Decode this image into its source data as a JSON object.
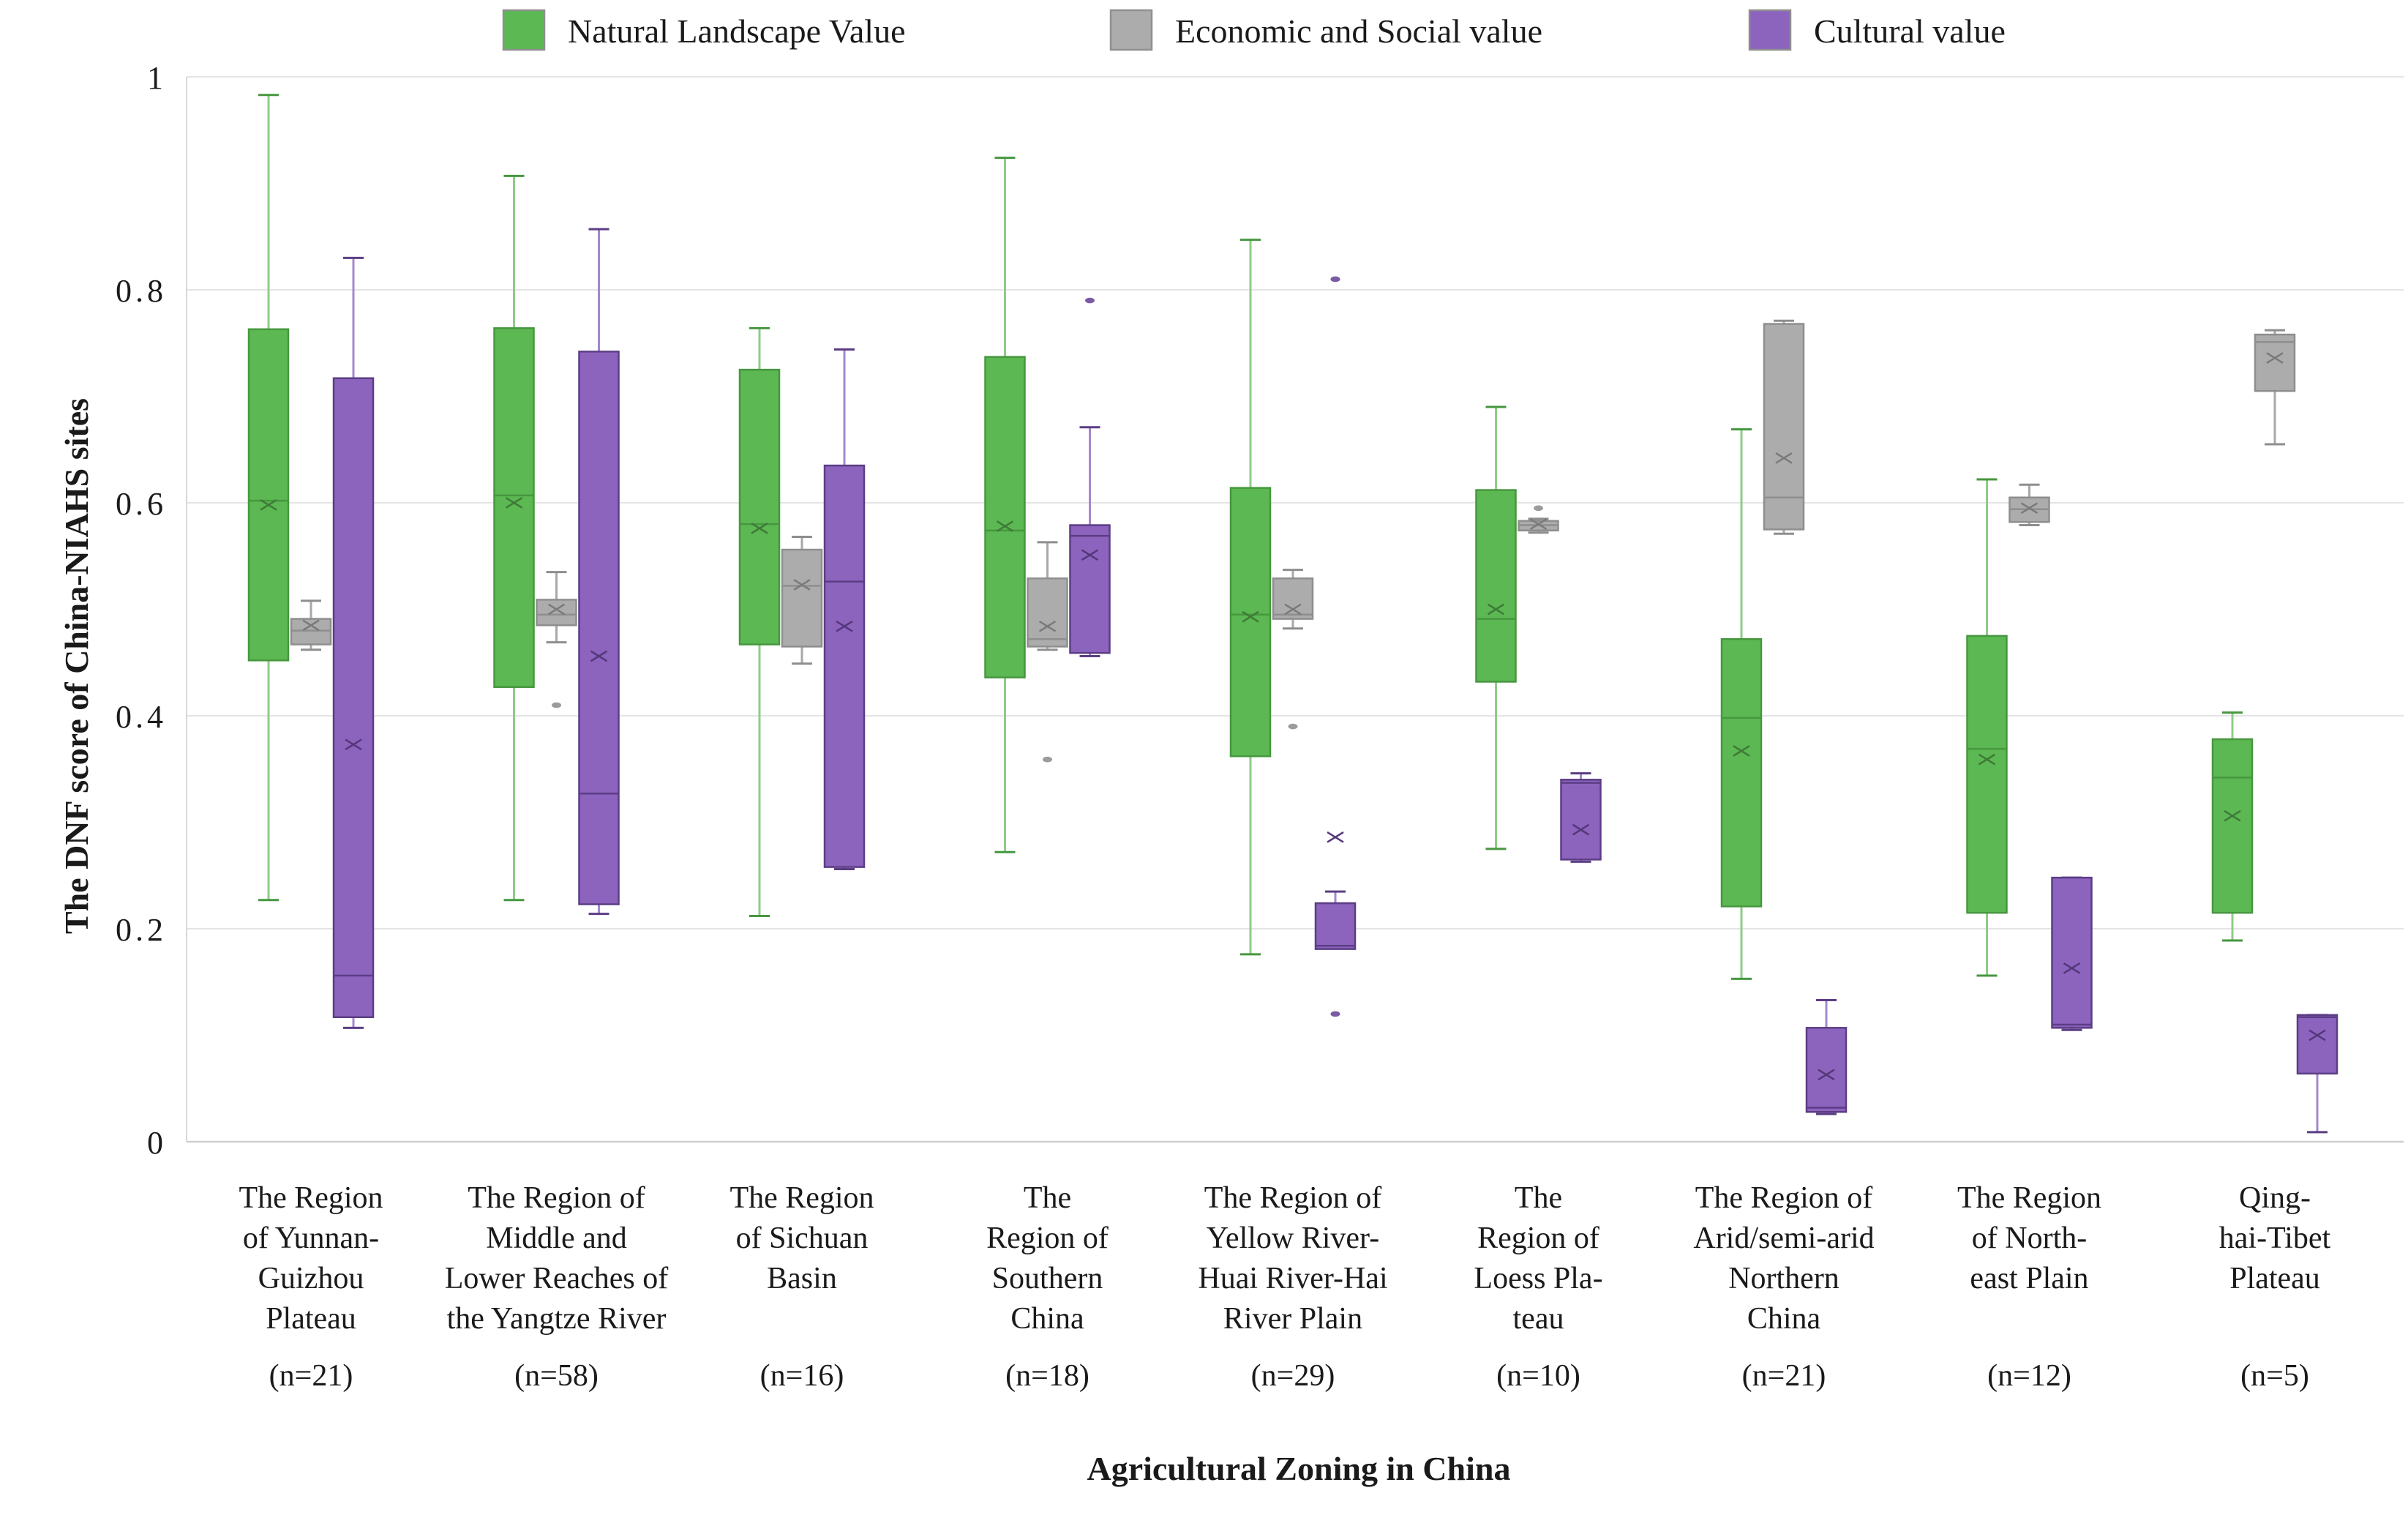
{
  "figure": {
    "y_axis_title": "The DNF score of China-NIAHS sites",
    "x_axis_title": "Agricultural Zoning in China"
  },
  "legend": [
    {
      "key": "natural",
      "label": "Natural Landscape Value",
      "swatch_color": "#5CB852"
    },
    {
      "key": "economic",
      "label": "Economic and Social value",
      "swatch_color": "#ACACAC"
    },
    {
      "key": "cultural",
      "label": "Cultural value",
      "swatch_color": "#8C64BE"
    }
  ],
  "chart_data": {
    "type": "boxplot",
    "title": "",
    "xlabel": "Agricultural Zoning in China",
    "ylabel": "The DNF score of China-NIAHS sites",
    "ylim": [
      0,
      1
    ],
    "y_ticks": [
      "1",
      "0.8",
      "0.6",
      "0.4",
      "0.2",
      "0"
    ],
    "grid": true,
    "legend_position": "top",
    "series_meta": [
      {
        "key": "natural",
        "label": "Natural Landscape Value",
        "fill": "#5CB852",
        "stroke": "#46973F",
        "whisker": "#8FCC88",
        "accent": "#3E7A38",
        "outlier": "#6FA868"
      },
      {
        "key": "economic",
        "label": "Economic and Social value",
        "fill": "#ACACAC",
        "stroke": "#8E8E8E",
        "whisker": "#A8A8A8",
        "accent": "#7A7A7A",
        "outlier": "#9B9B9B"
      },
      {
        "key": "cultural",
        "label": "Cultural value",
        "fill": "#8C64BE",
        "stroke": "#5C3D85",
        "whisker": "#A488CC",
        "accent": "#54377A",
        "outlier": "#7B5AA6"
      }
    ],
    "categories": [
      {
        "label_lines": [
          "The Region",
          "of Yunnan-",
          "Guizhou",
          "Plateau"
        ],
        "n_label": "(n=21)",
        "boxes": {
          "natural": {
            "whisker_low": 0.227,
            "q1": 0.452,
            "median": 0.602,
            "q3": 0.763,
            "whisker_high": 0.983,
            "mean": 0.598,
            "outliers": []
          },
          "economic": {
            "whisker_low": 0.462,
            "q1": 0.467,
            "median": 0.48,
            "q3": 0.491,
            "whisker_high": 0.508,
            "mean": 0.485,
            "outliers": []
          },
          "cultural": {
            "whisker_low": 0.107,
            "q1": 0.117,
            "median": 0.156,
            "q3": 0.717,
            "whisker_high": 0.83,
            "mean": 0.373,
            "outliers": []
          }
        }
      },
      {
        "label_lines": [
          "The Region of",
          "Middle and",
          "Lower Reaches of",
          "the Yangtze River"
        ],
        "n_label": "(n=58)",
        "boxes": {
          "natural": {
            "whisker_low": 0.227,
            "q1": 0.427,
            "median": 0.607,
            "q3": 0.764,
            "whisker_high": 0.907,
            "mean": 0.6,
            "outliers": []
          },
          "economic": {
            "whisker_low": 0.469,
            "q1": 0.485,
            "median": 0.495,
            "q3": 0.509,
            "whisker_high": 0.535,
            "mean": 0.5,
            "outliers": [
              0.41
            ]
          },
          "cultural": {
            "whisker_low": 0.214,
            "q1": 0.223,
            "median": 0.327,
            "q3": 0.742,
            "whisker_high": 0.857,
            "mean": 0.456,
            "outliers": []
          }
        }
      },
      {
        "label_lines": [
          "The Region",
          "of Sichuan",
          "Basin"
        ],
        "n_label": "(n=16)",
        "boxes": {
          "natural": {
            "whisker_low": 0.212,
            "q1": 0.467,
            "median": 0.58,
            "q3": 0.725,
            "whisker_high": 0.764,
            "mean": 0.576,
            "outliers": []
          },
          "economic": {
            "whisker_low": 0.449,
            "q1": 0.465,
            "median": 0.522,
            "q3": 0.556,
            "whisker_high": 0.568,
            "mean": 0.523,
            "outliers": []
          },
          "cultural": {
            "whisker_low": 0.256,
            "q1": 0.258,
            "median": 0.526,
            "q3": 0.635,
            "whisker_high": 0.744,
            "mean": 0.484,
            "outliers": []
          }
        }
      },
      {
        "label_lines": [
          "The",
          "Region of",
          "Southern",
          "China"
        ],
        "n_label": "(n=18)",
        "boxes": {
          "natural": {
            "whisker_low": 0.272,
            "q1": 0.436,
            "median": 0.574,
            "q3": 0.737,
            "whisker_high": 0.924,
            "mean": 0.578,
            "outliers": []
          },
          "economic": {
            "whisker_low": 0.462,
            "q1": 0.465,
            "median": 0.472,
            "q3": 0.529,
            "whisker_high": 0.563,
            "mean": 0.484,
            "outliers": [
              0.359
            ]
          },
          "cultural": {
            "whisker_low": 0.456,
            "q1": 0.459,
            "median": 0.569,
            "q3": 0.579,
            "whisker_high": 0.671,
            "mean": 0.551,
            "outliers": [
              0.79
            ]
          }
        }
      },
      {
        "label_lines": [
          "The Region of",
          "Yellow River-",
          "Huai River-Hai",
          "River Plain"
        ],
        "n_label": "(n=29)",
        "boxes": {
          "natural": {
            "whisker_low": 0.176,
            "q1": 0.362,
            "median": 0.495,
            "q3": 0.614,
            "whisker_high": 0.847,
            "mean": 0.493,
            "outliers": []
          },
          "economic": {
            "whisker_low": 0.482,
            "q1": 0.491,
            "median": 0.495,
            "q3": 0.529,
            "whisker_high": 0.537,
            "mean": 0.5,
            "outliers": [
              0.39
            ]
          },
          "cultural": {
            "whisker_low": 0.183,
            "q1": 0.181,
            "median": 0.184,
            "q3": 0.224,
            "whisker_high": 0.235,
            "mean": 0.286,
            "outliers": [
              0.81,
              0.12
            ]
          }
        }
      },
      {
        "label_lines": [
          "The",
          "Region of",
          "Loess Pla-",
          "teau"
        ],
        "n_label": "(n=10)",
        "boxes": {
          "natural": {
            "whisker_low": 0.275,
            "q1": 0.432,
            "median": 0.491,
            "q3": 0.612,
            "whisker_high": 0.69,
            "mean": 0.5,
            "outliers": []
          },
          "economic": {
            "whisker_low": 0.572,
            "q1": 0.574,
            "median": 0.579,
            "q3": 0.583,
            "whisker_high": 0.585,
            "mean": 0.58,
            "outliers": [
              0.595
            ]
          },
          "cultural": {
            "whisker_low": 0.263,
            "q1": 0.265,
            "median": 0.337,
            "q3": 0.34,
            "whisker_high": 0.346,
            "mean": 0.293,
            "outliers": []
          }
        }
      },
      {
        "label_lines": [
          "The Region of",
          "Arid/semi-arid",
          "Northern",
          "China"
        ],
        "n_label": "(n=21)",
        "boxes": {
          "natural": {
            "whisker_low": 0.153,
            "q1": 0.221,
            "median": 0.398,
            "q3": 0.472,
            "whisker_high": 0.669,
            "mean": 0.367,
            "outliers": []
          },
          "economic": {
            "whisker_low": 0.571,
            "q1": 0.575,
            "median": 0.605,
            "q3": 0.768,
            "whisker_high": 0.771,
            "mean": 0.642,
            "outliers": []
          },
          "cultural": {
            "whisker_low": 0.026,
            "q1": 0.028,
            "median": 0.032,
            "q3": 0.107,
            "whisker_high": 0.133,
            "mean": 0.063,
            "outliers": []
          }
        }
      },
      {
        "label_lines": [
          "The Region",
          "of North-",
          "east Plain"
        ],
        "n_label": "(n=12)",
        "boxes": {
          "natural": {
            "whisker_low": 0.156,
            "q1": 0.215,
            "median": 0.369,
            "q3": 0.475,
            "whisker_high": 0.622,
            "mean": 0.359,
            "outliers": []
          },
          "economic": {
            "whisker_low": 0.579,
            "q1": 0.582,
            "median": 0.594,
            "q3": 0.605,
            "whisker_high": 0.617,
            "mean": 0.595,
            "outliers": []
          },
          "cultural": {
            "whisker_low": 0.105,
            "q1": 0.107,
            "median": 0.11,
            "q3": 0.248,
            "whisker_high": 0.248,
            "mean": 0.163,
            "outliers": []
          }
        }
      },
      {
        "label_lines": [
          "Qing-",
          "hai-Tibet",
          "Plateau"
        ],
        "n_label": "(n=5)",
        "boxes": {
          "natural": {
            "whisker_low": 0.189,
            "q1": 0.215,
            "median": 0.342,
            "q3": 0.378,
            "whisker_high": 0.403,
            "mean": 0.306,
            "outliers": []
          },
          "economic": {
            "whisker_low": 0.655,
            "q1": 0.705,
            "median": 0.751,
            "q3": 0.758,
            "whisker_high": 0.762,
            "mean": 0.736,
            "outliers": []
          },
          "cultural": {
            "whisker_low": 0.009,
            "q1": 0.064,
            "median": 0.117,
            "q3": 0.119,
            "whisker_high": 0.119,
            "mean": 0.1,
            "outliers": []
          }
        }
      }
    ]
  }
}
